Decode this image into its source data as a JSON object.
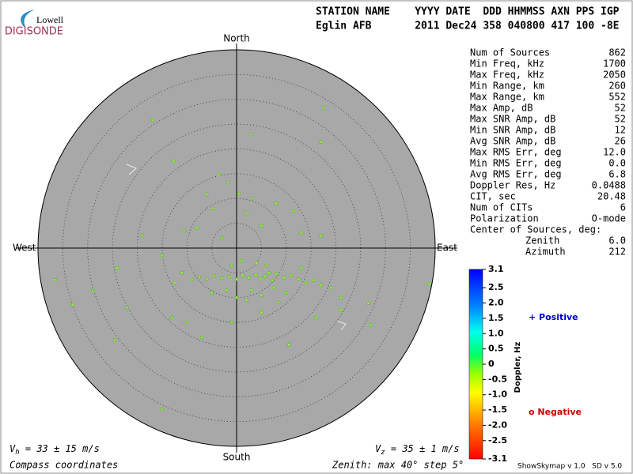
{
  "logo": {
    "top": "Lowell",
    "bottom": "DIGISONDE"
  },
  "header": {
    "line1": "STATION NAME    YYYY DATE  DDD HHMMSS AXN PPS IGP",
    "line2": "Eglin AFB       2011 Dec24 358 040800 417 100 -8E"
  },
  "stats": [
    [
      "Num of Sources",
      "862"
    ],
    [
      "Min Freq, kHz",
      "1700"
    ],
    [
      "Max Freq, kHz",
      "2050"
    ],
    [
      "Min Range, km",
      "260"
    ],
    [
      "Max Range, km",
      "552"
    ],
    [
      "Max Amp, dB",
      "52"
    ],
    [
      "Max SNR Amp, dB",
      "52"
    ],
    [
      "Min SNR Amp, dB",
      "12"
    ],
    [
      "Avg SNR Amp, dB",
      "26"
    ],
    [
      "Max RMS Err, deg",
      "12.0"
    ],
    [
      "Min RMS Err, deg",
      "0.0"
    ],
    [
      "Avg RMS Err, deg",
      "6.8"
    ],
    [
      "Doppler Res, Hz",
      "0.0488"
    ],
    [
      "CIT, sec",
      "20.48"
    ],
    [
      "Num of CITs",
      "6"
    ],
    [
      "Polarization",
      "O-mode"
    ]
  ],
  "center": {
    "title": "Center of Sources, deg:",
    "rows": [
      [
        "Zenith",
        "6.0"
      ],
      [
        "Azimuth",
        "212"
      ]
    ]
  },
  "footer": {
    "vh_v": "V",
    "vh_sub": "h",
    "vh_rest": " = 33 ± 15 m/s",
    "vz_v": "V",
    "vz_sub": "z",
    "vz_rest": " = 35 ± 1 m/s",
    "coords": "Compass coordinates",
    "zenith": "Zenith: max 40°  step 5°",
    "version": "ShowSkymap v 1.0   SD v 5.0"
  },
  "legend": {
    "positive": "+ Positive",
    "negative": "o Negative"
  },
  "colorbar": {
    "label": "Doppler, Hz",
    "clim": [
      -3.1,
      3.1
    ],
    "ticks": [
      3.1,
      2.5,
      {
        "value": 2,
        "label": "2.0"
      },
      1.5,
      {
        "value": 1,
        "label": "1.0"
      },
      0.5,
      0,
      -0.5,
      {
        "value": -1,
        "label": "-1.0"
      },
      -1.5,
      {
        "value": -2,
        "label": "-2.0"
      },
      -2.5,
      -3.1
    ]
  },
  "chart_data": {
    "type": "scatter",
    "directions": {
      "north": "North",
      "south": "South",
      "west": "West",
      "east": "East"
    },
    "xlim": [
      -40,
      40
    ],
    "ylim": [
      -40,
      40
    ],
    "rmax": 40,
    "rstep": 5,
    "color": "#99ee44",
    "x": [
      5.7,
      6.5,
      4.8,
      7.2,
      3.9,
      8,
      2.5,
      1.2,
      0,
      -1.5,
      -3,
      -4.5,
      -6,
      -7.5,
      -9,
      9.5,
      11,
      12.5,
      14,
      15.5,
      17,
      6,
      4,
      7.5,
      3,
      5,
      10,
      -2,
      -5,
      1,
      -1,
      13,
      19,
      21,
      -11,
      -12.5,
      2,
      8.5,
      -16.9,
      2.9,
      17.5,
      16.9,
      -12.7,
      -3.5,
      -1.8,
      -6,
      -4.8,
      8,
      11.5,
      2,
      5,
      -8,
      -10.6,
      13,
      17,
      -3,
      0.5,
      3,
      -36.5,
      -29,
      -33,
      -24,
      -22,
      -13,
      -24.5,
      -10,
      -15,
      -19,
      -7,
      26.5,
      27,
      38.8,
      21,
      10.5,
      16,
      5,
      -15,
      0,
      -1
    ],
    "y": [
      -5.7,
      -5,
      -6.2,
      -6.5,
      -5.4,
      -5.2,
      -6,
      -5.5,
      -6.3,
      -5.8,
      -6.1,
      -5.6,
      -6.2,
      -5.9,
      -6.4,
      -6,
      -5.5,
      -6.3,
      -7,
      -6.5,
      -7.5,
      -3.5,
      -3,
      -8,
      -8.5,
      -9.5,
      -9,
      -8.5,
      -9,
      -2.5,
      -3.5,
      -4,
      -8,
      -10,
      -5,
      -7,
      -10.5,
      -11,
      25.8,
      22.9,
      28.3,
      21.4,
      17.5,
      14.8,
      13.2,
      10.8,
      8,
      9,
      7.5,
      7,
      4.5,
      4,
      3.5,
      3,
      2.5,
      2,
      11,
      10,
      -6.4,
      -8.6,
      -11.4,
      -4,
      -12,
      -14,
      -18.5,
      -15,
      -1.5,
      2.5,
      -18,
      -11.1,
      -15.5,
      -7.2,
      -12.5,
      -19.5,
      -14,
      -13,
      -32.5,
      -10,
      -15
    ]
  }
}
